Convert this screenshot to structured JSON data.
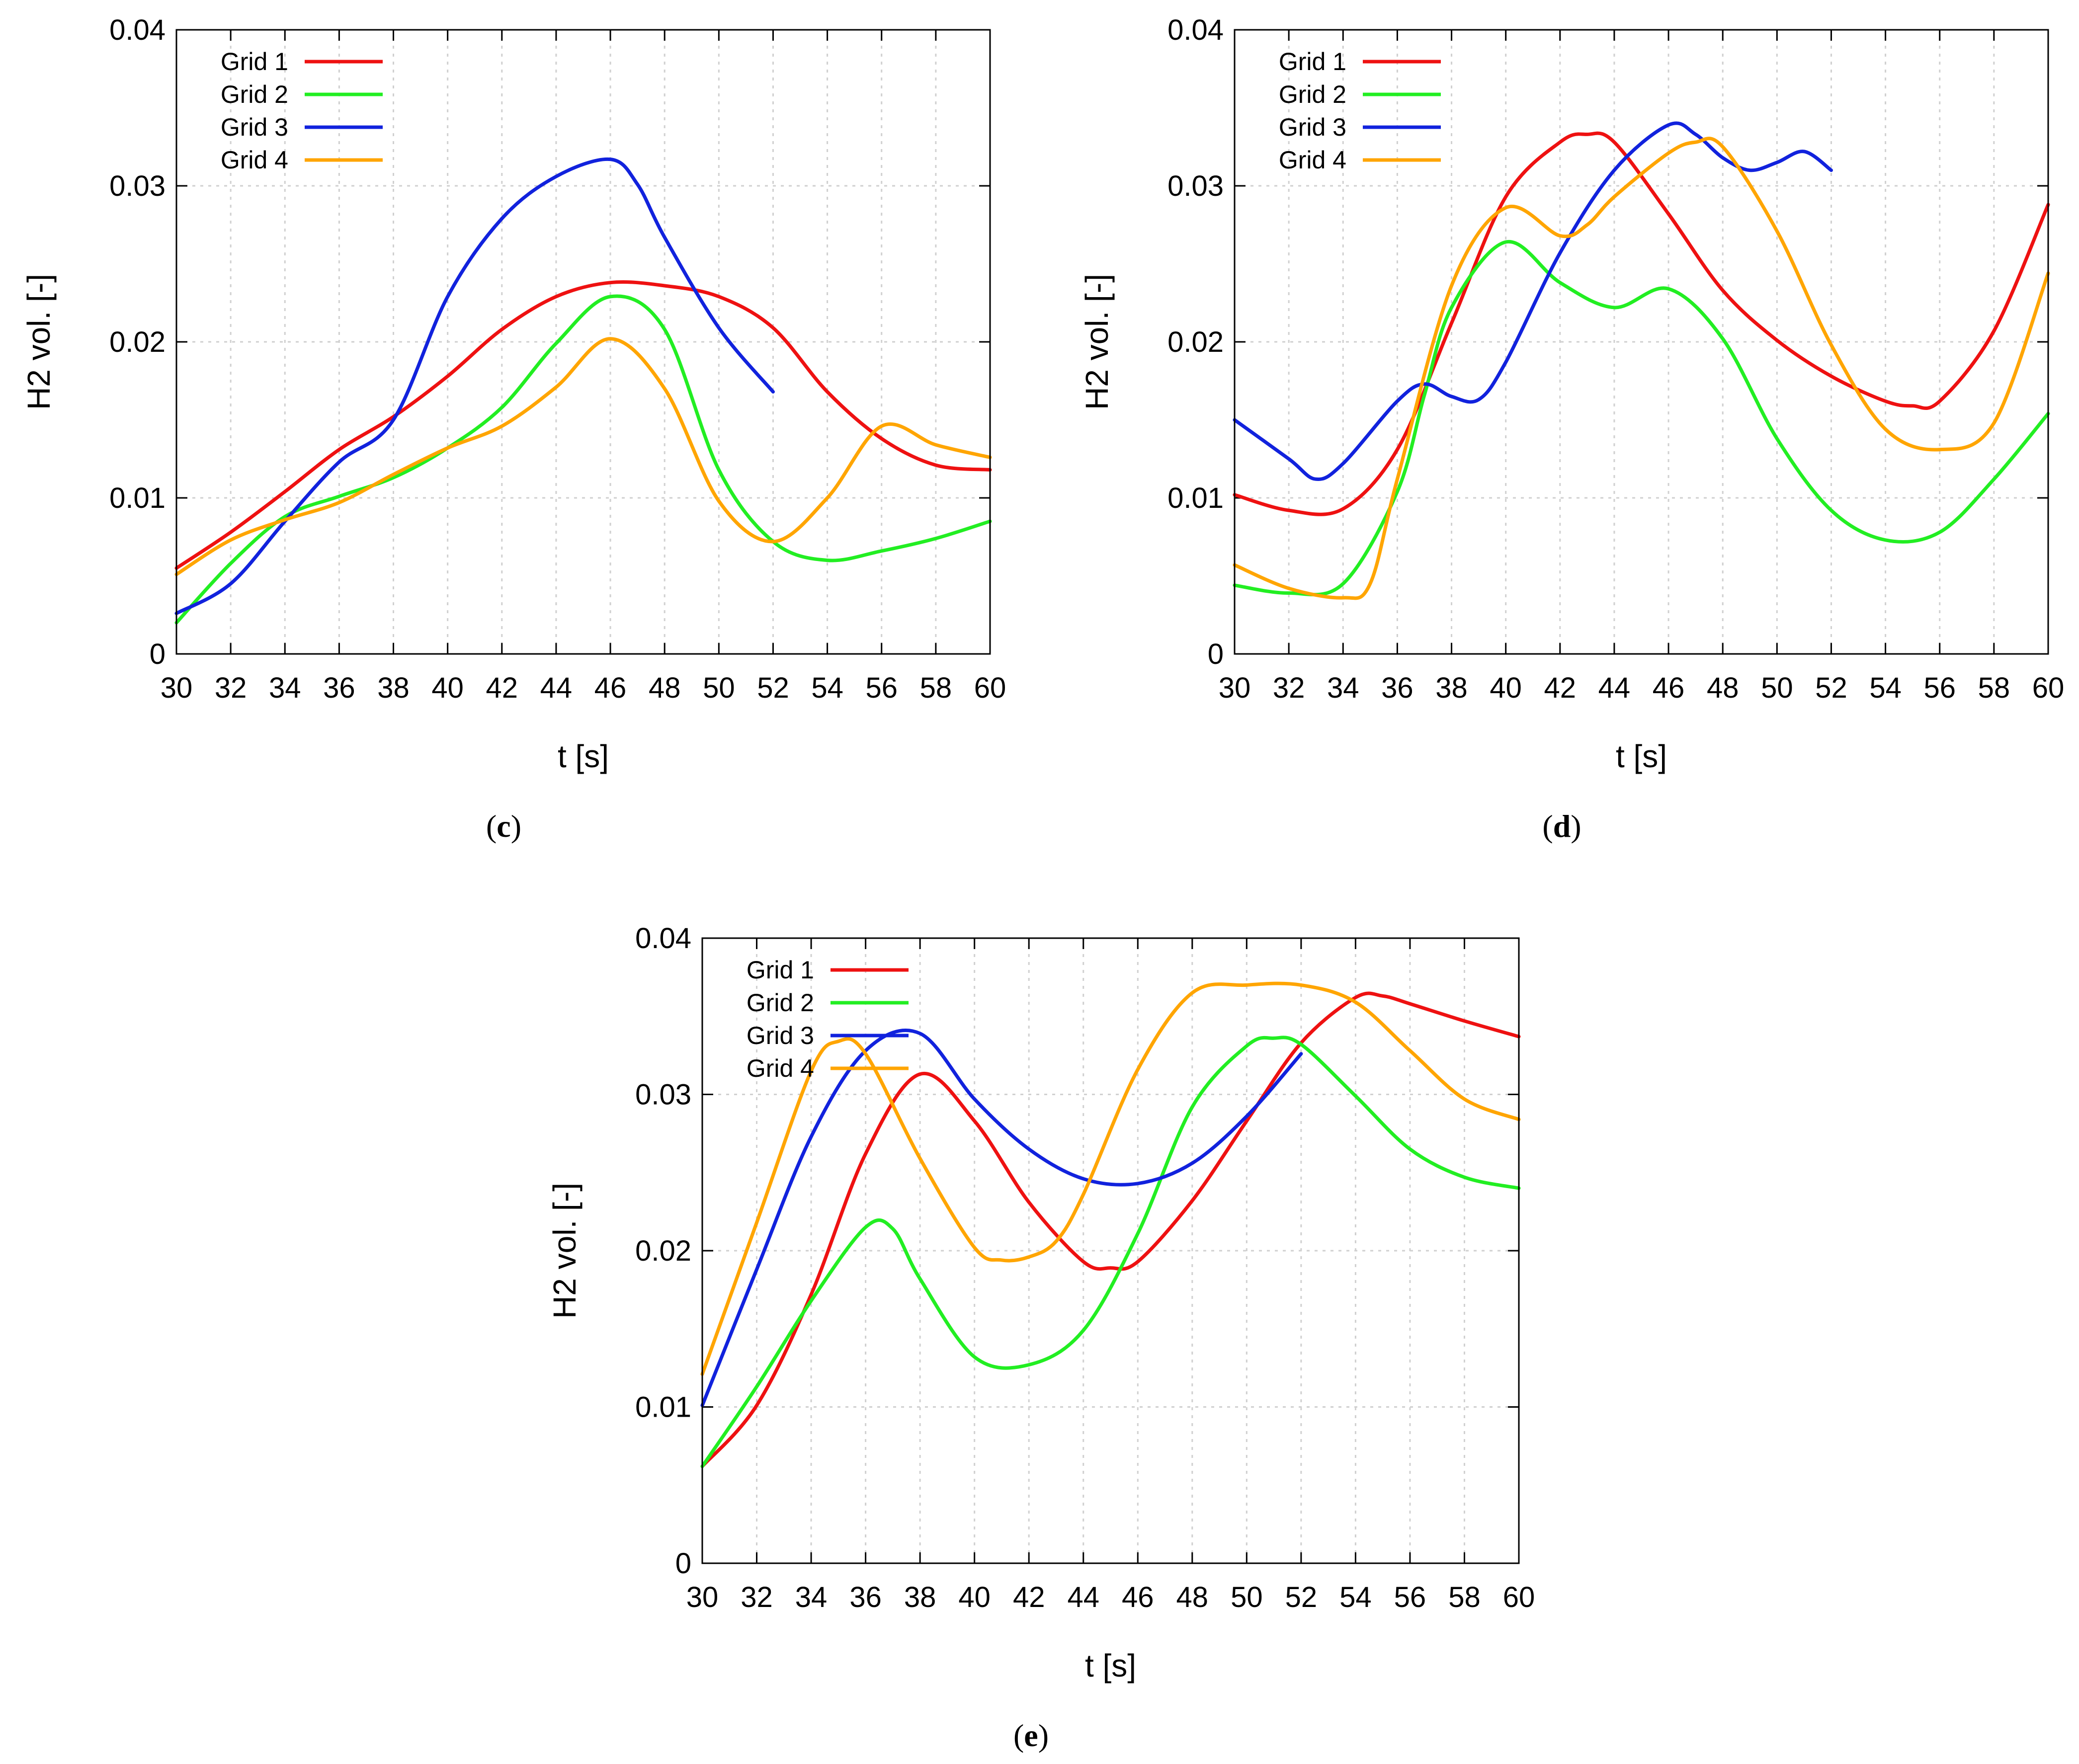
{
  "figure": {
    "colors": {
      "Grid 1": "#ee1111",
      "Grid 2": "#22ee22",
      "Grid 3": "#1122dd",
      "Grid 4": "#ffa500"
    }
  },
  "chart_data": [
    {
      "type": "line",
      "panel_label": "c",
      "title": "",
      "xlabel": "t [s]",
      "ylabel": "H2 vol. [-]",
      "xlim": [
        30,
        60
      ],
      "ylim": [
        0,
        0.04
      ],
      "xticks": [
        30,
        32,
        34,
        36,
        38,
        40,
        42,
        44,
        46,
        48,
        50,
        52,
        54,
        56,
        58,
        60
      ],
      "yticks": [
        0,
        0.01,
        0.02,
        0.03,
        0.04
      ],
      "ytick_labels": [
        "0",
        "0.01",
        "0.02",
        "0.03",
        "0.04"
      ],
      "grid": true,
      "legend": "top-left",
      "series": [
        {
          "name": "Grid 1",
          "color": "#ee1111",
          "x": [
            30,
            32,
            34,
            36,
            38,
            40,
            42,
            44,
            46,
            48,
            50,
            52,
            54,
            56,
            58,
            60
          ],
          "y": [
            0.0055,
            0.0078,
            0.0104,
            0.0131,
            0.0152,
            0.0178,
            0.0208,
            0.0229,
            0.0238,
            0.0236,
            0.0229,
            0.0209,
            0.0168,
            0.0138,
            0.0121,
            0.0118
          ]
        },
        {
          "name": "Grid 2",
          "color": "#22ee22",
          "x": [
            30,
            32,
            34,
            36,
            38,
            40,
            42,
            44,
            46,
            48,
            50,
            52,
            54,
            56,
            58,
            60
          ],
          "y": [
            0.002,
            0.0058,
            0.0088,
            0.0101,
            0.0113,
            0.0132,
            0.0158,
            0.0199,
            0.0229,
            0.0208,
            0.0118,
            0.0072,
            0.006,
            0.0066,
            0.0074,
            0.0085
          ]
        },
        {
          "name": "Grid 3",
          "color": "#1122dd",
          "x": [
            30,
            32,
            34,
            36,
            38,
            40,
            42,
            44,
            46,
            47,
            48,
            50,
            52
          ],
          "y": [
            0.0026,
            0.0045,
            0.0085,
            0.0123,
            0.015,
            0.0229,
            0.0279,
            0.0306,
            0.0317,
            0.0301,
            0.0267,
            0.0209,
            0.0168
          ]
        },
        {
          "name": "Grid 4",
          "color": "#ffa500",
          "x": [
            30,
            32,
            34,
            36,
            38,
            40,
            42,
            44,
            46,
            48,
            50,
            52,
            54,
            56,
            58,
            60
          ],
          "y": [
            0.0051,
            0.0073,
            0.0086,
            0.0097,
            0.0115,
            0.0132,
            0.0146,
            0.0171,
            0.0202,
            0.017,
            0.0098,
            0.0072,
            0.01,
            0.0146,
            0.0134,
            0.0126
          ]
        }
      ]
    },
    {
      "type": "line",
      "panel_label": "d",
      "title": "",
      "xlabel": "t [s]",
      "ylabel": "H2 vol. [-]",
      "xlim": [
        30,
        60
      ],
      "ylim": [
        0,
        0.04
      ],
      "xticks": [
        30,
        32,
        34,
        36,
        38,
        40,
        42,
        44,
        46,
        48,
        50,
        52,
        54,
        56,
        58,
        60
      ],
      "yticks": [
        0,
        0.01,
        0.02,
        0.03,
        0.04
      ],
      "ytick_labels": [
        "0",
        "0.01",
        "0.02",
        "0.03",
        "0.04"
      ],
      "grid": true,
      "legend": "top-left",
      "series": [
        {
          "name": "Grid 1",
          "color": "#ee1111",
          "x": [
            30,
            32,
            34,
            36,
            38,
            40,
            42,
            43,
            44,
            46,
            48,
            50,
            52,
            54,
            55,
            56,
            58,
            60
          ],
          "y": [
            0.0102,
            0.0092,
            0.0093,
            0.0131,
            0.0212,
            0.0293,
            0.0328,
            0.0333,
            0.0328,
            0.0282,
            0.0233,
            0.0201,
            0.0178,
            0.0162,
            0.0159,
            0.0162,
            0.0207,
            0.0288
          ]
        },
        {
          "name": "Grid 2",
          "color": "#22ee22",
          "x": [
            30,
            32,
            34,
            36,
            37,
            38,
            40,
            42,
            44,
            46,
            48,
            50,
            52,
            54,
            56,
            58,
            60
          ],
          "y": [
            0.0044,
            0.0039,
            0.0045,
            0.0104,
            0.0166,
            0.0222,
            0.0264,
            0.0238,
            0.0222,
            0.0234,
            0.0202,
            0.0138,
            0.0092,
            0.0073,
            0.0078,
            0.0112,
            0.0154
          ]
        },
        {
          "name": "Grid 3",
          "color": "#1122dd",
          "x": [
            30,
            32,
            33,
            34,
            36,
            37,
            38,
            39,
            40,
            42,
            44,
            46,
            47,
            48,
            49,
            50,
            51,
            52
          ],
          "y": [
            0.015,
            0.0125,
            0.0112,
            0.0122,
            0.0162,
            0.0173,
            0.0165,
            0.0163,
            0.0187,
            0.0257,
            0.031,
            0.0339,
            0.0333,
            0.0318,
            0.031,
            0.0315,
            0.0322,
            0.031
          ]
        },
        {
          "name": "Grid 4",
          "color": "#ffa500",
          "x": [
            30,
            32,
            34,
            35,
            36,
            38,
            40,
            42,
            43,
            44,
            46,
            47,
            48,
            50,
            52,
            54,
            56,
            58,
            60
          ],
          "y": [
            0.0057,
            0.0042,
            0.0036,
            0.0045,
            0.0112,
            0.0236,
            0.0286,
            0.0268,
            0.0275,
            0.0293,
            0.0321,
            0.0328,
            0.0325,
            0.0271,
            0.0198,
            0.0144,
            0.0131,
            0.0148,
            0.0244
          ]
        }
      ]
    },
    {
      "type": "line",
      "panel_label": "e",
      "title": "",
      "xlabel": "t [s]",
      "ylabel": "H2 vol. [-]",
      "xlim": [
        30,
        60
      ],
      "ylim": [
        0,
        0.04
      ],
      "xticks": [
        30,
        32,
        34,
        36,
        38,
        40,
        42,
        44,
        46,
        48,
        50,
        52,
        54,
        56,
        58,
        60
      ],
      "yticks": [
        0,
        0.01,
        0.02,
        0.03,
        0.04
      ],
      "ytick_labels": [
        "0",
        "0.01",
        "0.02",
        "0.03",
        "0.04"
      ],
      "grid": true,
      "legend": "top-left",
      "series": [
        {
          "name": "Grid 1",
          "color": "#ee1111",
          "x": [
            30,
            32,
            34,
            36,
            38,
            40,
            42,
            44,
            45,
            46,
            48,
            50,
            52,
            54,
            55,
            56,
            58,
            60
          ],
          "y": [
            0.0062,
            0.0101,
            0.0172,
            0.0262,
            0.0313,
            0.0283,
            0.0231,
            0.0193,
            0.0189,
            0.0193,
            0.0232,
            0.0283,
            0.0333,
            0.0362,
            0.0363,
            0.0358,
            0.0347,
            0.0337
          ]
        },
        {
          "name": "Grid 2",
          "color": "#22ee22",
          "x": [
            30,
            32,
            34,
            36,
            37,
            38,
            40,
            42,
            44,
            46,
            48,
            50,
            51,
            52,
            54,
            56,
            58,
            60
          ],
          "y": [
            0.0062,
            0.0113,
            0.0168,
            0.0215,
            0.0214,
            0.0182,
            0.0132,
            0.0127,
            0.0149,
            0.0211,
            0.0292,
            0.0331,
            0.0336,
            0.0332,
            0.0299,
            0.0265,
            0.0247,
            0.024
          ]
        },
        {
          "name": "Grid 3",
          "color": "#1122dd",
          "x": [
            30,
            32,
            34,
            36,
            38,
            40,
            42,
            44,
            46,
            48,
            50,
            52
          ],
          "y": [
            0.0101,
            0.0188,
            0.0273,
            0.0328,
            0.0339,
            0.0297,
            0.0265,
            0.0246,
            0.0243,
            0.0256,
            0.0286,
            0.0326
          ]
        },
        {
          "name": "Grid 4",
          "color": "#ffa500",
          "x": [
            30,
            32,
            34,
            35,
            36,
            38,
            40,
            41,
            42,
            43,
            44,
            46,
            48,
            50,
            52,
            54,
            56,
            58,
            60
          ],
          "y": [
            0.0121,
            0.0218,
            0.0315,
            0.0334,
            0.0326,
            0.0259,
            0.0202,
            0.0194,
            0.0196,
            0.0206,
            0.0236,
            0.0316,
            0.0365,
            0.037,
            0.037,
            0.0359,
            0.0328,
            0.0297,
            0.0284
          ]
        }
      ]
    }
  ]
}
